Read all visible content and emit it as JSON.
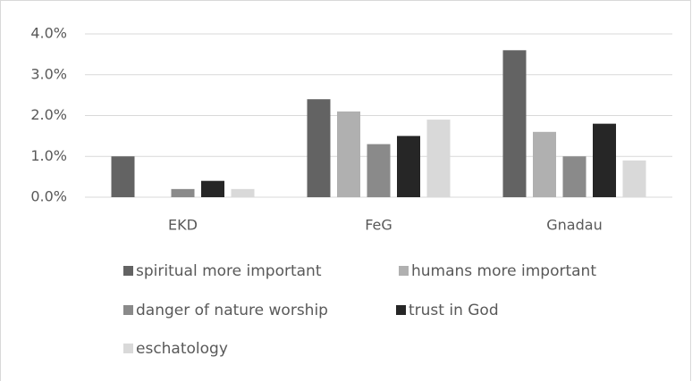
{
  "chart_data": {
    "type": "bar",
    "categories": [
      "EKD",
      "FeG",
      "Gnadau"
    ],
    "series": [
      {
        "name": "spiritual more important",
        "color": "#636363",
        "values": [
          1.0,
          2.4,
          3.6
        ]
      },
      {
        "name": "humans more important",
        "color": "#b0b0b0",
        "values": [
          0,
          2.1,
          1.6
        ]
      },
      {
        "name": "danger of nature worship",
        "color": "#8a8a8a",
        "values": [
          0.2,
          1.3,
          1.0
        ]
      },
      {
        "name": "trust in God",
        "color": "#262626",
        "values": [
          0.4,
          1.5,
          1.8
        ]
      },
      {
        "name": "eschatology",
        "color": "#d9d9d9",
        "values": [
          0.2,
          1.9,
          0.9
        ]
      }
    ],
    "ylim": [
      0,
      4
    ],
    "yticks": [
      {
        "value": 0,
        "label": "0.0%"
      },
      {
        "value": 1,
        "label": "1.0%"
      },
      {
        "value": 2,
        "label": "2.0%"
      },
      {
        "value": 3,
        "label": "3.0%"
      },
      {
        "value": 4,
        "label": "4.0%"
      }
    ],
    "grid": true,
    "legend": "bottom"
  }
}
